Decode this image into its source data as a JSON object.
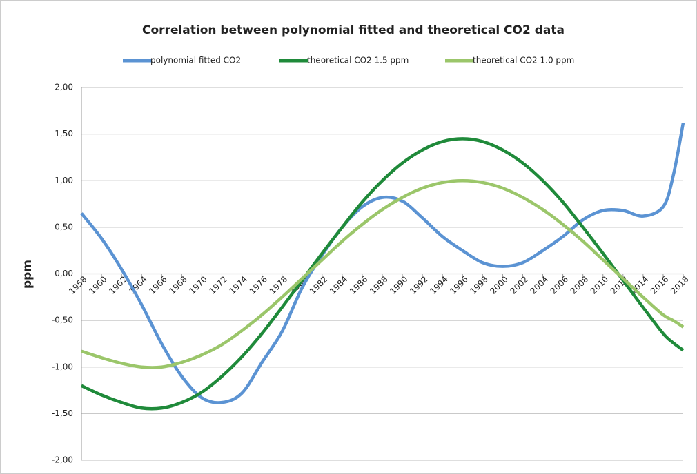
{
  "chart_data": {
    "type": "line",
    "title": "Correlation between polynomial fitted and theoretical CO2 data",
    "y_label": "ppm",
    "x": [
      1958,
      1960,
      1962,
      1964,
      1966,
      1968,
      1970,
      1972,
      1974,
      1976,
      1978,
      1980,
      1982,
      1984,
      1986,
      1988,
      1990,
      1992,
      1994,
      1996,
      1998,
      2000,
      2002,
      2004,
      2006,
      2008,
      2010,
      2012,
      2014,
      2016,
      2017,
      2018
    ],
    "series": [
      {
        "name": "polynomial fitted CO2",
        "color": "#5b93d3",
        "values": [
          0.65,
          0.38,
          0.05,
          -0.33,
          -0.75,
          -1.1,
          -1.33,
          -1.38,
          -1.28,
          -0.95,
          -0.62,
          -0.15,
          0.2,
          0.5,
          0.72,
          0.82,
          0.78,
          0.6,
          0.4,
          0.25,
          0.12,
          0.08,
          0.12,
          0.25,
          0.4,
          0.58,
          0.68,
          0.68,
          0.62,
          0.72,
          1.05,
          1.62
        ]
      },
      {
        "name": "theoretical CO2 1.5 ppm",
        "color": "#1f8a3a",
        "values": [
          -1.2,
          -1.3,
          -1.38,
          -1.44,
          -1.44,
          -1.38,
          -1.27,
          -1.1,
          -0.89,
          -0.64,
          -0.36,
          -0.07,
          0.22,
          0.5,
          0.77,
          1.0,
          1.19,
          1.33,
          1.42,
          1.45,
          1.42,
          1.33,
          1.19,
          1.0,
          0.77,
          0.5,
          0.22,
          -0.07,
          -0.36,
          -0.64,
          -0.74,
          -0.82
        ]
      },
      {
        "name": "theoretical CO2 1.0 ppm",
        "color": "#9bc66a",
        "values": [
          -0.83,
          -0.9,
          -0.96,
          -1.0,
          -1.0,
          -0.95,
          -0.87,
          -0.76,
          -0.61,
          -0.44,
          -0.25,
          -0.05,
          0.15,
          0.35,
          0.53,
          0.69,
          0.82,
          0.92,
          0.98,
          1.0,
          0.98,
          0.92,
          0.82,
          0.69,
          0.53,
          0.35,
          0.15,
          -0.05,
          -0.25,
          -0.44,
          -0.5,
          -0.57
        ]
      }
    ],
    "xlim": [
      1958,
      2018
    ],
    "xticks": [
      1958,
      1960,
      1962,
      1964,
      1966,
      1968,
      1970,
      1972,
      1974,
      1976,
      1978,
      1980,
      1982,
      1984,
      1986,
      1988,
      1990,
      1992,
      1994,
      1996,
      1998,
      2000,
      2002,
      2004,
      2006,
      2008,
      2010,
      2012,
      2014,
      2016,
      2018
    ],
    "ylim": [
      -2,
      2
    ],
    "yticks": [
      {
        "value": 2,
        "label": "2,00"
      },
      {
        "value": 1.5,
        "label": "1,50"
      },
      {
        "value": 1,
        "label": "1,00"
      },
      {
        "value": 0.5,
        "label": "0,50"
      },
      {
        "value": 0,
        "label": "0,00"
      },
      {
        "value": -0.5,
        "label": "-0,50"
      },
      {
        "value": -1,
        "label": "-1,00"
      },
      {
        "value": -1.5,
        "label": "-1,50"
      },
      {
        "value": -2,
        "label": "-2,00"
      }
    ],
    "grid": true,
    "legend": "top"
  }
}
